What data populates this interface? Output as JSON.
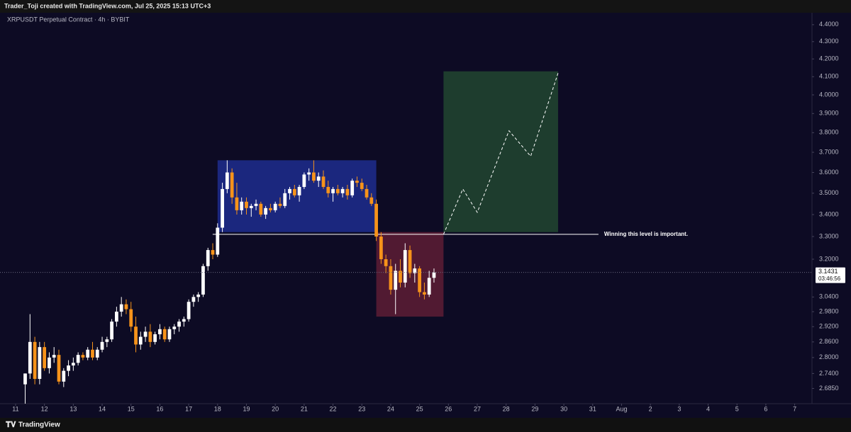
{
  "header": "Trader_Toji created with TradingView.com, Jul 25, 2025 15:13 UTC+3",
  "footer": "TradingView",
  "chart_data": {
    "type": "candlestick",
    "title": "XRPUSDT Perpetual Contract · 4h · BYBIT",
    "log_scale": true,
    "up_color": "#ffffff",
    "down_color": "#f7931a",
    "xlim": [
      10.46,
      38.6
    ],
    "ylim": [
      2.63,
      4.55
    ],
    "xticks": [
      11,
      12,
      13,
      14,
      15,
      16,
      17,
      18,
      19,
      20,
      21,
      22,
      23,
      24,
      25,
      26,
      27,
      28,
      29,
      30,
      31,
      {
        "value": 32,
        "label": "Aug"
      },
      {
        "value": 33,
        "label": "2"
      },
      {
        "value": 34,
        "label": "3"
      },
      {
        "value": 35,
        "label": "4"
      },
      {
        "value": 36,
        "label": "5"
      },
      {
        "value": 37,
        "label": "6"
      },
      {
        "value": 38,
        "label": "7"
      }
    ],
    "yticks": [
      {
        "value": 4.4,
        "label": "4.4000"
      },
      {
        "value": 4.3,
        "label": "4.3000"
      },
      {
        "value": 4.2,
        "label": "4.2000"
      },
      {
        "value": 4.1,
        "label": "4.1000"
      },
      {
        "value": 4.0,
        "label": "4.0000"
      },
      {
        "value": 3.9,
        "label": "3.9000"
      },
      {
        "value": 3.8,
        "label": "3.8000"
      },
      {
        "value": 3.7,
        "label": "3.7000"
      },
      {
        "value": 3.6,
        "label": "3.6000"
      },
      {
        "value": 3.5,
        "label": "3.5000"
      },
      {
        "value": 3.4,
        "label": "3.4000"
      },
      {
        "value": 3.3,
        "label": "3.3000"
      },
      {
        "value": 3.2,
        "label": "3.2000"
      },
      {
        "value": 3.04,
        "label": "3.0400"
      },
      {
        "value": 2.98,
        "label": "2.9800"
      },
      {
        "value": 2.92,
        "label": "2.9200"
      },
      {
        "value": 2.86,
        "label": "2.8600"
      },
      {
        "value": 2.8,
        "label": "2.8000"
      },
      {
        "value": 2.74,
        "label": "2.7400"
      },
      {
        "value": 2.685,
        "label": "2.6850"
      }
    ],
    "x": [
      11.333,
      11.5,
      11.667,
      11.833,
      12,
      12.167,
      12.333,
      12.5,
      12.667,
      12.833,
      13,
      13.167,
      13.333,
      13.5,
      13.667,
      13.833,
      14,
      14.167,
      14.333,
      14.5,
      14.667,
      14.833,
      15,
      15.167,
      15.333,
      15.5,
      15.667,
      15.833,
      16,
      16.167,
      16.333,
      16.5,
      16.667,
      16.833,
      17,
      17.167,
      17.333,
      17.5,
      17.667,
      17.833,
      18,
      18.167,
      18.333,
      18.5,
      18.667,
      18.833,
      19,
      19.167,
      19.333,
      19.5,
      19.667,
      19.833,
      20,
      20.167,
      20.333,
      20.5,
      20.667,
      20.833,
      21,
      21.167,
      21.333,
      21.5,
      21.667,
      21.833,
      22,
      22.167,
      22.333,
      22.5,
      22.667,
      22.833,
      23,
      23.167,
      23.333,
      23.5,
      23.667,
      23.833,
      24,
      24.167,
      24.333,
      24.5,
      24.667,
      24.833,
      25,
      25.167,
      25.333,
      25.5
    ],
    "ohlc": [
      [
        2.7,
        2.74,
        2.63,
        2.74
      ],
      [
        2.74,
        2.97,
        2.72,
        2.86
      ],
      [
        2.86,
        2.88,
        2.7,
        2.72
      ],
      [
        2.72,
        2.86,
        2.7,
        2.84
      ],
      [
        2.84,
        2.86,
        2.75,
        2.76
      ],
      [
        2.76,
        2.82,
        2.74,
        2.8
      ],
      [
        2.8,
        2.84,
        2.78,
        2.81
      ],
      [
        2.81,
        2.83,
        2.7,
        2.71
      ],
      [
        2.71,
        2.76,
        2.69,
        2.75
      ],
      [
        2.75,
        2.79,
        2.73,
        2.77
      ],
      [
        2.77,
        2.8,
        2.75,
        2.78
      ],
      [
        2.78,
        2.82,
        2.77,
        2.81
      ],
      [
        2.81,
        2.82,
        2.79,
        2.8
      ],
      [
        2.8,
        2.84,
        2.79,
        2.83
      ],
      [
        2.83,
        2.86,
        2.79,
        2.8
      ],
      [
        2.8,
        2.84,
        2.79,
        2.83
      ],
      [
        2.83,
        2.88,
        2.82,
        2.86
      ],
      [
        2.86,
        2.88,
        2.84,
        2.87
      ],
      [
        2.87,
        2.95,
        2.86,
        2.94
      ],
      [
        2.94,
        3.0,
        2.92,
        2.98
      ],
      [
        2.98,
        3.04,
        2.96,
        3.01
      ],
      [
        3.01,
        3.03,
        2.97,
        2.99
      ],
      [
        2.99,
        3.02,
        2.9,
        2.92
      ],
      [
        2.92,
        2.96,
        2.82,
        2.85
      ],
      [
        2.85,
        2.9,
        2.83,
        2.88
      ],
      [
        2.88,
        2.92,
        2.86,
        2.9
      ],
      [
        2.9,
        2.93,
        2.84,
        2.86
      ],
      [
        2.86,
        2.9,
        2.85,
        2.89
      ],
      [
        2.89,
        2.93,
        2.87,
        2.91
      ],
      [
        2.91,
        2.92,
        2.86,
        2.87
      ],
      [
        2.87,
        2.92,
        2.86,
        2.91
      ],
      [
        2.91,
        2.93,
        2.89,
        2.92
      ],
      [
        2.92,
        2.95,
        2.9,
        2.94
      ],
      [
        2.94,
        2.96,
        2.92,
        2.95
      ],
      [
        2.95,
        3.03,
        2.94,
        3.02
      ],
      [
        3.02,
        3.05,
        3.0,
        3.04
      ],
      [
        3.04,
        3.06,
        3.02,
        3.05
      ],
      [
        3.05,
        3.18,
        3.04,
        3.17
      ],
      [
        3.17,
        3.25,
        3.15,
        3.24
      ],
      [
        3.24,
        3.27,
        3.2,
        3.22
      ],
      [
        3.22,
        3.36,
        3.21,
        3.34
      ],
      [
        3.34,
        3.55,
        3.32,
        3.52
      ],
      [
        3.52,
        3.66,
        3.5,
        3.6
      ],
      [
        3.6,
        3.62,
        3.45,
        3.48
      ],
      [
        3.48,
        3.55,
        3.4,
        3.42
      ],
      [
        3.42,
        3.48,
        3.4,
        3.46
      ],
      [
        3.46,
        3.48,
        3.4,
        3.43
      ],
      [
        3.43,
        3.45,
        3.39,
        3.44
      ],
      [
        3.44,
        3.47,
        3.42,
        3.45
      ],
      [
        3.45,
        3.46,
        3.39,
        3.4
      ],
      [
        3.4,
        3.44,
        3.38,
        3.43
      ],
      [
        3.43,
        3.45,
        3.41,
        3.42
      ],
      [
        3.42,
        3.46,
        3.41,
        3.45
      ],
      [
        3.45,
        3.48,
        3.43,
        3.44
      ],
      [
        3.44,
        3.52,
        3.43,
        3.5
      ],
      [
        3.5,
        3.53,
        3.47,
        3.52
      ],
      [
        3.52,
        3.54,
        3.48,
        3.49
      ],
      [
        3.49,
        3.54,
        3.46,
        3.53
      ],
      [
        3.53,
        3.6,
        3.52,
        3.59
      ],
      [
        3.59,
        3.62,
        3.56,
        3.6
      ],
      [
        3.6,
        3.66,
        3.55,
        3.56
      ],
      [
        3.56,
        3.6,
        3.53,
        3.58
      ],
      [
        3.58,
        3.61,
        3.52,
        3.53
      ],
      [
        3.53,
        3.56,
        3.48,
        3.5
      ],
      [
        3.5,
        3.53,
        3.46,
        3.52
      ],
      [
        3.52,
        3.54,
        3.49,
        3.5
      ],
      [
        3.5,
        3.53,
        3.48,
        3.52
      ],
      [
        3.52,
        3.54,
        3.47,
        3.49
      ],
      [
        3.49,
        3.57,
        3.48,
        3.56
      ],
      [
        3.56,
        3.58,
        3.53,
        3.55
      ],
      [
        3.55,
        3.57,
        3.51,
        3.52
      ],
      [
        3.52,
        3.54,
        3.47,
        3.48
      ],
      [
        3.48,
        3.5,
        3.44,
        3.45
      ],
      [
        3.45,
        3.47,
        3.28,
        3.3
      ],
      [
        3.3,
        3.32,
        3.18,
        3.2
      ],
      [
        3.2,
        3.22,
        3.14,
        3.17
      ],
      [
        3.17,
        3.2,
        3.05,
        3.07
      ],
      [
        3.07,
        3.18,
        2.97,
        3.15
      ],
      [
        3.15,
        3.2,
        3.08,
        3.1
      ],
      [
        3.1,
        3.27,
        3.08,
        3.24
      ],
      [
        3.24,
        3.26,
        3.12,
        3.14
      ],
      [
        3.14,
        3.18,
        3.1,
        3.16
      ],
      [
        3.16,
        3.17,
        3.04,
        3.06
      ],
      [
        3.06,
        3.1,
        3.03,
        3.05
      ],
      [
        3.05,
        3.15,
        3.04,
        3.12
      ],
      [
        3.12,
        3.16,
        3.1,
        3.1431
      ]
    ],
    "countdown": "03:46:56",
    "zones": [
      {
        "x": [
          18,
          23.5
        ],
        "y": [
          3.32,
          3.66
        ],
        "color": "#1f2d8e"
      },
      {
        "x": [
          23.5,
          25.83
        ],
        "y": [
          2.96,
          3.32
        ],
        "color": "#5e1d35"
      },
      {
        "x": [
          25.83,
          29.8
        ],
        "y": [
          3.32,
          4.13
        ],
        "color": "#224730"
      }
    ],
    "level": {
      "value": 3.31,
      "x": [
        17.83,
        31.2
      ],
      "label": "Winning this level is important.",
      "color": "#ffffff"
    },
    "projection": {
      "x": [
        25.83,
        26.5,
        27.0,
        28.1,
        28.85,
        29.8
      ],
      "y": [
        3.31,
        3.52,
        3.41,
        3.81,
        3.68,
        4.12
      ],
      "color": "#ffffff"
    }
  }
}
